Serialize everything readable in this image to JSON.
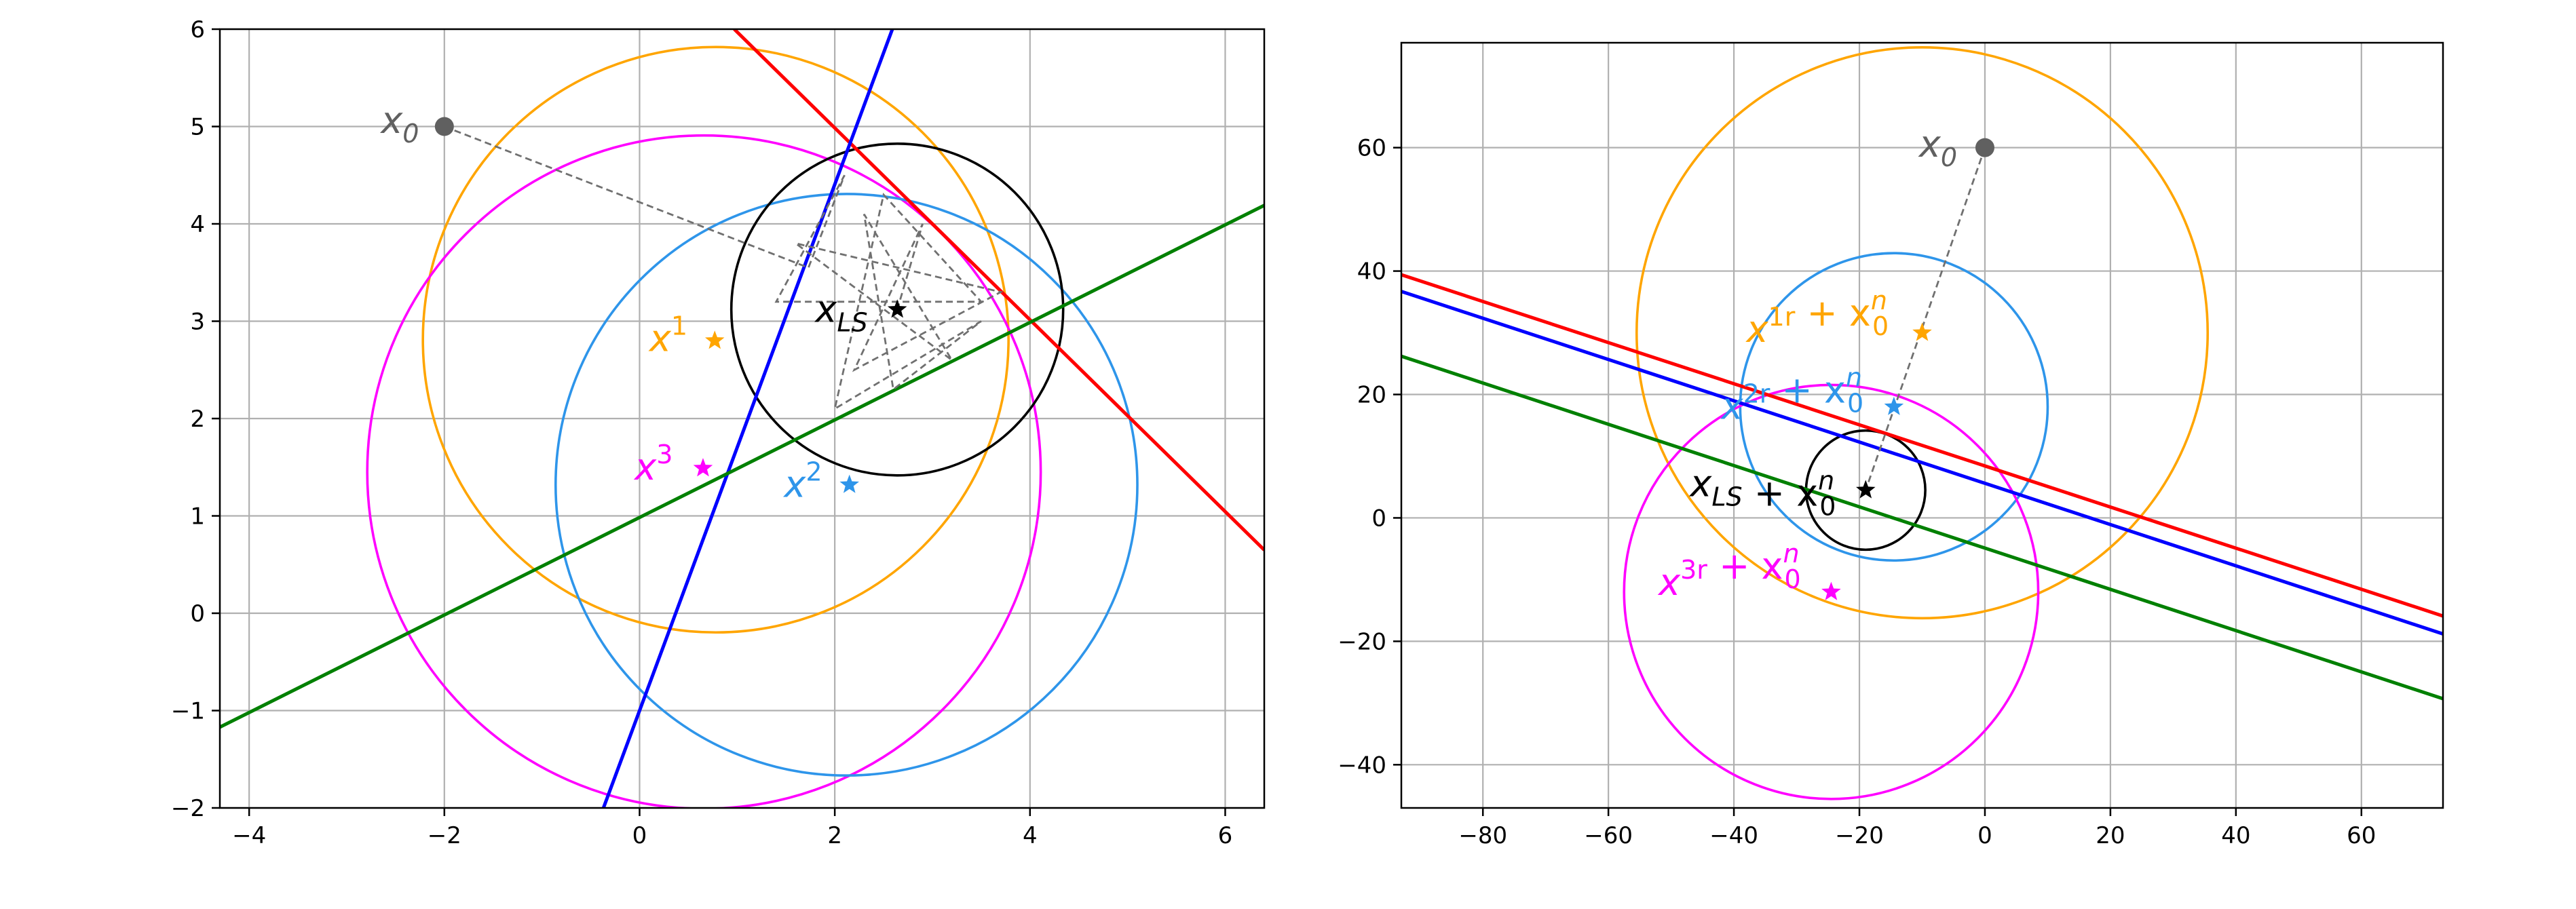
{
  "chart_data": [
    {
      "type": "line",
      "title": "",
      "xlabel": "",
      "ylabel": "",
      "xlim": [
        -4.3,
        6.4
      ],
      "ylim": [
        -2,
        6
      ],
      "xticks": [
        -4,
        -2,
        0,
        2,
        4,
        6
      ],
      "yticks": [
        -2,
        -1,
        0,
        1,
        2,
        3,
        4,
        5,
        6
      ],
      "grid": true,
      "lines": [
        {
          "name": "",
          "color": "#ff0000",
          "points": [
            [
              0.97,
              6
            ],
            [
              6.4,
              0.65
            ]
          ]
        },
        {
          "name": "",
          "color": "#0000ff",
          "points": [
            [
              -0.37,
              -2
            ],
            [
              2.59,
              6
            ]
          ]
        },
        {
          "name": "",
          "color": "#008000",
          "points": [
            [
              -4.3,
              -1.17
            ],
            [
              6.4,
              4.19
            ]
          ]
        }
      ],
      "circles": [
        {
          "name": "",
          "color": "#ffa500",
          "center": [
            0.78,
            2.81
          ],
          "radius": 3.0
        },
        {
          "name": "",
          "color": "#ff00ff",
          "center": [
            0.66,
            1.45
          ],
          "radius": 3.45
        },
        {
          "name": "",
          "color": "#2e95ea",
          "center": [
            2.12,
            1.32
          ],
          "radius": 2.98
        },
        {
          "name": "",
          "color": "#000000",
          "center": [
            2.64,
            3.12
          ],
          "radius": 1.7
        }
      ],
      "path_dashed": [
        [
          -2,
          5
        ],
        [
          1.73,
          3.55
        ],
        [
          2.1,
          4.5
        ],
        [
          1.4,
          3.2
        ],
        [
          3.5,
          3.2
        ],
        [
          2.5,
          4.3
        ],
        [
          2.0,
          2.1
        ],
        [
          3.5,
          3.0
        ],
        [
          2.6,
          2.3
        ],
        [
          2.3,
          4.1
        ],
        [
          3.2,
          2.6
        ],
        [
          1.6,
          3.8
        ],
        [
          3.7,
          3.3
        ],
        [
          2.2,
          2.5
        ],
        [
          2.9,
          4.0
        ],
        [
          2.64,
          3.12
        ]
      ],
      "points": [
        {
          "color": "#606060",
          "marker": "circle",
          "x": -2,
          "y": 5
        },
        {
          "color": "#ffa500",
          "marker": "star",
          "x": 0.77,
          "y": 2.8
        },
        {
          "color": "#2e95ea",
          "marker": "star",
          "x": 2.15,
          "y": 1.32
        },
        {
          "color": "#ff00ff",
          "marker": "star",
          "x": 0.65,
          "y": 1.49
        },
        {
          "color": "#000000",
          "marker": "star",
          "x": 2.64,
          "y": 3.12
        }
      ],
      "annotations": [
        {
          "text": "x",
          "sub": "0",
          "sup": "",
          "color": "#606060",
          "x": -2.65,
          "y": 5.06
        },
        {
          "text": "x",
          "sub": "",
          "sup": "1",
          "color": "#ffa500",
          "x": 0.1,
          "y": 2.82
        },
        {
          "text": "x",
          "sub": "",
          "sup": "2",
          "color": "#2e95ea",
          "x": 1.48,
          "y": 1.32
        },
        {
          "text": "x",
          "sub": "",
          "sup": "3",
          "color": "#ff00ff",
          "x": -0.05,
          "y": 1.5
        },
        {
          "text": "x",
          "sub": "LS",
          "sup": "",
          "color": "#000000",
          "x": 1.8,
          "y": 3.12
        }
      ]
    },
    {
      "type": "line",
      "title": "",
      "xlabel": "",
      "ylabel": "",
      "xlim": [
        -93,
        73
      ],
      "ylim": [
        -47,
        77
      ],
      "xticks": [
        -80,
        -60,
        -40,
        -20,
        0,
        20,
        40,
        60
      ],
      "yticks": [
        -40,
        -20,
        0,
        20,
        40,
        60
      ],
      "grid": true,
      "lines": [
        {
          "name": "",
          "color": "#ff0000",
          "points": [
            [
              -93,
              39.4
            ],
            [
              73,
              -15.9
            ]
          ]
        },
        {
          "name": "",
          "color": "#0000ff",
          "points": [
            [
              -93,
              36.7
            ],
            [
              73,
              -18.8
            ]
          ]
        },
        {
          "name": "",
          "color": "#008000",
          "points": [
            [
              -93,
              26.2
            ],
            [
              73,
              -29.3
            ]
          ]
        }
      ],
      "circles": [
        {
          "name": "",
          "color": "#ffa500",
          "center": [
            -10,
            30
          ],
          "radius": 45.5
        },
        {
          "name": "",
          "color": "#2e95ea",
          "center": [
            -14.5,
            18
          ],
          "radius": 24.5
        },
        {
          "name": "",
          "color": "#ff00ff",
          "center": [
            -24.5,
            -12
          ],
          "radius": 33
        },
        {
          "name": "",
          "color": "#000000",
          "center": [
            -19,
            4.5
          ],
          "radius": 9.5
        }
      ],
      "path_dashed": [
        [
          0,
          60
        ],
        [
          -19,
          4.5
        ]
      ],
      "points": [
        {
          "color": "#606060",
          "marker": "circle",
          "x": 0,
          "y": 60
        },
        {
          "color": "#ffa500",
          "marker": "star",
          "x": -10,
          "y": 30
        },
        {
          "color": "#2e95ea",
          "marker": "star",
          "x": -14.5,
          "y": 18
        },
        {
          "color": "#ff00ff",
          "marker": "star",
          "x": -24.5,
          "y": -12
        },
        {
          "color": "#000000",
          "marker": "star",
          "x": -19,
          "y": 4.5
        }
      ],
      "annotations": [
        {
          "text": "x",
          "sub": "0",
          "sup": "",
          "color": "#606060",
          "x": -10.5,
          "y": 60.5
        },
        {
          "text": "x",
          "sub": "",
          "sup": "1r",
          "color": "#ffa500",
          "x": -38,
          "y": 30.5,
          "suffix": " + x",
          "suffix_sub": "0",
          "suffix_sup": "n"
        },
        {
          "text": "x",
          "sub": "",
          "sup": "2r",
          "color": "#2e95ea",
          "x": -42,
          "y": 18,
          "suffix": " + x",
          "suffix_sub": "0",
          "suffix_sup": "n"
        },
        {
          "text": "x",
          "sub": "LS",
          "sup": "",
          "color": "#000000",
          "x": -47,
          "y": 5.5,
          "suffix": " + x",
          "suffix_sub": "0",
          "suffix_sup": "n"
        },
        {
          "text": "x",
          "sub": "",
          "sup": "3r",
          "color": "#ff00ff",
          "x": -52,
          "y": -10.5,
          "suffix": " + x",
          "suffix_sub": "0",
          "suffix_sup": "n"
        }
      ]
    }
  ]
}
